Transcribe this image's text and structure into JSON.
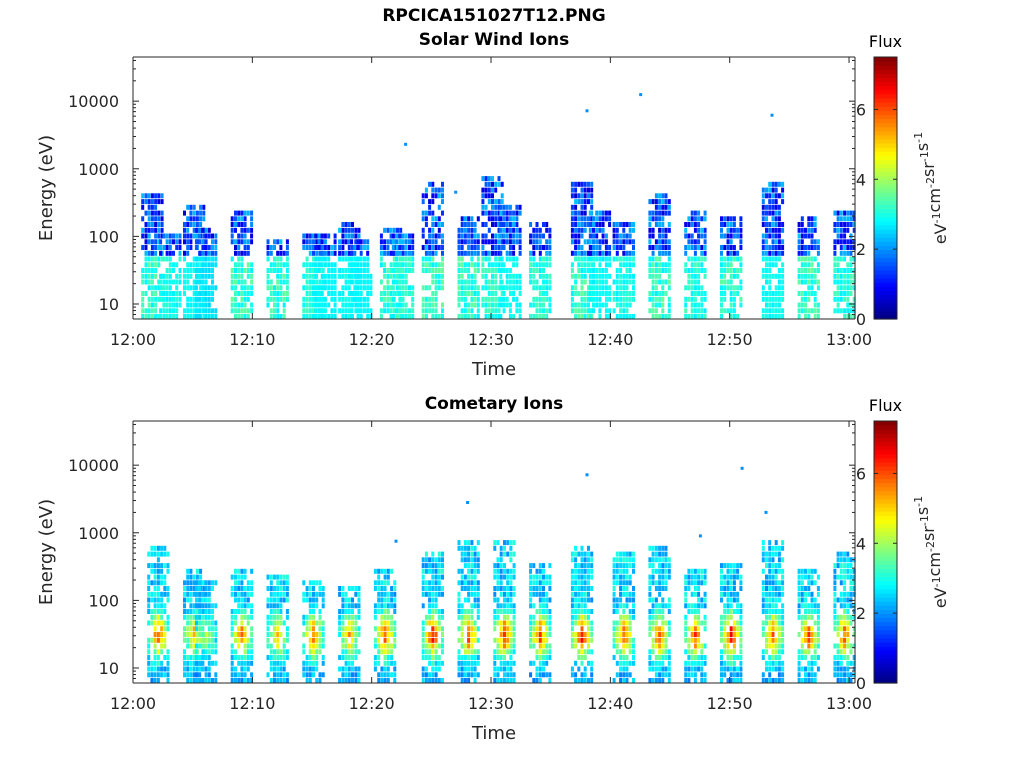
{
  "figure": {
    "title": "RPCICA151027T12.PNG"
  },
  "chart_data": [
    {
      "type": "heatmap",
      "title": "Solar Wind Ions",
      "xlabel": "Time",
      "ylabel": "Energy (eV)",
      "x_ticks": [
        "12:00",
        "12:10",
        "12:20",
        "12:30",
        "12:40",
        "12:50",
        "13:00"
      ],
      "xlim": [
        "12:00",
        "13:00"
      ],
      "y_scale": "log",
      "y_ticks": [
        10,
        100,
        1000,
        10000
      ],
      "ylim": [
        6,
        45000
      ],
      "colorbar": {
        "label": "Flux",
        "units": "eV-1cm-2sr-1s-1",
        "range": [
          0,
          7.5
        ],
        "ticks": [
          0,
          2,
          4,
          6
        ],
        "colormap": "jet"
      },
      "bursts": [
        {
          "time": "12:01.5",
          "e_max": 380,
          "peak_flux": 3.5
        },
        {
          "time": "12:03",
          "e_max": 110,
          "peak_flux": 3.2
        },
        {
          "time": "12:05",
          "e_max": 260,
          "peak_flux": 3.0
        },
        {
          "time": "12:06",
          "e_max": 120,
          "peak_flux": 2.5
        },
        {
          "time": "12:09",
          "e_max": 220,
          "peak_flux": 3.6
        },
        {
          "time": "12:12",
          "e_max": 80,
          "peak_flux": 3.6
        },
        {
          "time": "12:15",
          "e_max": 110,
          "peak_flux": 3.3
        },
        {
          "time": "12:16",
          "e_max": 100,
          "peak_flux": 2.8
        },
        {
          "time": "12:18",
          "e_max": 140,
          "peak_flux": 3.0
        },
        {
          "time": "12:19",
          "e_max": 90,
          "peak_flux": 2.8
        },
        {
          "time": "12:21.5",
          "e_max": 120,
          "peak_flux": 3.5
        },
        {
          "time": "12:22.5",
          "e_max": 100,
          "peak_flux": 3.3
        },
        {
          "time": "12:25",
          "e_max": 600,
          "peak_flux": 3.6
        },
        {
          "time": "12:28",
          "e_max": 200,
          "peak_flux": 3.6
        },
        {
          "time": "12:30",
          "e_max": 800,
          "peak_flux": 3.4
        },
        {
          "time": "12:31.5",
          "e_max": 300,
          "peak_flux": 3.0
        },
        {
          "time": "12:34",
          "e_max": 150,
          "peak_flux": 3.4
        },
        {
          "time": "12:37.5",
          "e_max": 620,
          "peak_flux": 3.6
        },
        {
          "time": "12:39",
          "e_max": 220,
          "peak_flux": 3.0
        },
        {
          "time": "12:41",
          "e_max": 160,
          "peak_flux": 3.2
        },
        {
          "time": "12:44",
          "e_max": 420,
          "peak_flux": 3.6
        },
        {
          "time": "12:47",
          "e_max": 220,
          "peak_flux": 3.4
        },
        {
          "time": "12:50",
          "e_max": 200,
          "peak_flux": 3.5
        },
        {
          "time": "12:53.5",
          "e_max": 650,
          "peak_flux": 3.0
        },
        {
          "time": "12:56.5",
          "e_max": 200,
          "peak_flux": 3.6
        },
        {
          "time": "12:59.5",
          "e_max": 220,
          "peak_flux": 3.4
        }
      ],
      "isolated_points": [
        {
          "time": "12:22.8",
          "energy": 2300,
          "flux": 2.0
        },
        {
          "time": "12:38",
          "energy": 7200,
          "flux": 2.0
        },
        {
          "time": "12:42.5",
          "energy": 12500,
          "flux": 2.0
        },
        {
          "time": "12:53.5",
          "energy": 6200,
          "flux": 2.0
        },
        {
          "time": "12:27",
          "energy": 450,
          "flux": 2.0
        }
      ]
    },
    {
      "type": "heatmap",
      "title": "Cometary Ions",
      "xlabel": "Time",
      "ylabel": "Energy (eV)",
      "x_ticks": [
        "12:00",
        "12:10",
        "12:20",
        "12:30",
        "12:40",
        "12:50",
        "13:00"
      ],
      "xlim": [
        "12:00",
        "13:00"
      ],
      "y_scale": "log",
      "y_ticks": [
        10,
        100,
        1000,
        10000
      ],
      "ylim": [
        6,
        45000
      ],
      "colorbar": {
        "label": "Flux",
        "units": "eV-1cm-2sr-1s-1",
        "range": [
          0,
          7.5
        ],
        "ticks": [
          0,
          2,
          4,
          6
        ],
        "colormap": "jet"
      },
      "bursts": [
        {
          "time": "12:02",
          "e_max": 550,
          "peak_flux": 6.0
        },
        {
          "time": "12:05",
          "e_max": 250,
          "peak_flux": 5.2
        },
        {
          "time": "12:06",
          "e_max": 200,
          "peak_flux": 4.0
        },
        {
          "time": "12:09",
          "e_max": 260,
          "peak_flux": 5.6
        },
        {
          "time": "12:12",
          "e_max": 230,
          "peak_flux": 5.0
        },
        {
          "time": "12:15",
          "e_max": 180,
          "peak_flux": 5.6
        },
        {
          "time": "12:18",
          "e_max": 160,
          "peak_flux": 5.2
        },
        {
          "time": "12:21",
          "e_max": 280,
          "peak_flux": 6.0
        },
        {
          "time": "12:25",
          "e_max": 500,
          "peak_flux": 6.4
        },
        {
          "time": "12:28",
          "e_max": 700,
          "peak_flux": 6.0
        },
        {
          "time": "12:31",
          "e_max": 800,
          "peak_flux": 6.2
        },
        {
          "time": "12:34",
          "e_max": 350,
          "peak_flux": 6.0
        },
        {
          "time": "12:37.5",
          "e_max": 600,
          "peak_flux": 6.6
        },
        {
          "time": "12:41",
          "e_max": 450,
          "peak_flux": 6.0
        },
        {
          "time": "12:44",
          "e_max": 550,
          "peak_flux": 6.0
        },
        {
          "time": "12:47",
          "e_max": 300,
          "peak_flux": 6.0
        },
        {
          "time": "12:50",
          "e_max": 320,
          "peak_flux": 6.6
        },
        {
          "time": "12:53.5",
          "e_max": 800,
          "peak_flux": 5.8
        },
        {
          "time": "12:56.5",
          "e_max": 300,
          "peak_flux": 6.2
        },
        {
          "time": "12:59.5",
          "e_max": 500,
          "peak_flux": 5.8
        }
      ],
      "isolated_points": [
        {
          "time": "12:28",
          "energy": 2800,
          "flux": 2.0
        },
        {
          "time": "12:38",
          "energy": 7200,
          "flux": 2.0
        },
        {
          "time": "12:51",
          "energy": 9000,
          "flux": 2.0
        },
        {
          "time": "12:53",
          "energy": 2000,
          "flux": 2.0
        },
        {
          "time": "12:22",
          "energy": 750,
          "flux": 2.0
        },
        {
          "time": "12:47.5",
          "energy": 900,
          "flux": 2.0
        }
      ]
    }
  ]
}
